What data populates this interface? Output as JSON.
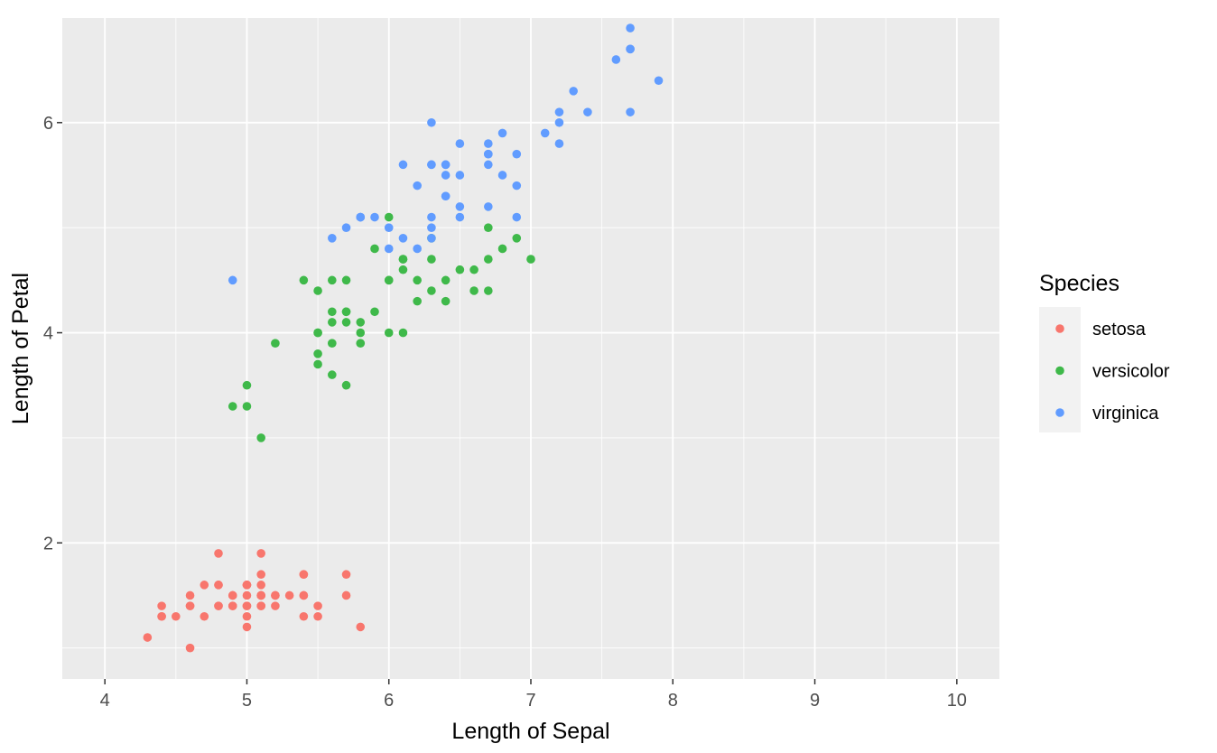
{
  "chart_data": {
    "type": "scatter",
    "title": "",
    "xlabel": "Length of Sepal",
    "ylabel": "Length of Petal",
    "xlim": [
      3.7,
      10.3
    ],
    "ylim": [
      0.705,
      6.995
    ],
    "x_ticks": [
      4,
      5,
      6,
      7,
      8,
      9,
      10
    ],
    "x_tick_labels": [
      "4",
      "5",
      "6",
      "7",
      "8",
      "9",
      "10"
    ],
    "y_ticks": [
      2,
      4,
      6
    ],
    "y_tick_labels": [
      "2",
      "4",
      "6"
    ],
    "grid": true,
    "legend": {
      "title": "Species",
      "position": "right"
    },
    "series": [
      {
        "name": "setosa",
        "color": "#F8766D",
        "points": [
          [
            5.1,
            1.4
          ],
          [
            4.9,
            1.4
          ],
          [
            4.7,
            1.3
          ],
          [
            4.6,
            1.5
          ],
          [
            5.0,
            1.4
          ],
          [
            5.4,
            1.7
          ],
          [
            4.6,
            1.4
          ],
          [
            5.0,
            1.5
          ],
          [
            4.4,
            1.4
          ],
          [
            4.9,
            1.5
          ],
          [
            5.4,
            1.5
          ],
          [
            4.8,
            1.6
          ],
          [
            4.8,
            1.4
          ],
          [
            4.3,
            1.1
          ],
          [
            5.8,
            1.2
          ],
          [
            5.7,
            1.5
          ],
          [
            5.4,
            1.3
          ],
          [
            5.1,
            1.4
          ],
          [
            5.7,
            1.7
          ],
          [
            5.1,
            1.5
          ],
          [
            5.4,
            1.7
          ],
          [
            5.1,
            1.5
          ],
          [
            4.6,
            1.0
          ],
          [
            5.1,
            1.7
          ],
          [
            4.8,
            1.9
          ],
          [
            5.0,
            1.6
          ],
          [
            5.0,
            1.6
          ],
          [
            5.2,
            1.5
          ],
          [
            5.2,
            1.4
          ],
          [
            4.7,
            1.6
          ],
          [
            4.8,
            1.6
          ],
          [
            5.4,
            1.5
          ],
          [
            5.2,
            1.5
          ],
          [
            5.5,
            1.4
          ],
          [
            4.9,
            1.5
          ],
          [
            5.0,
            1.2
          ],
          [
            5.5,
            1.3
          ],
          [
            4.9,
            1.4
          ],
          [
            4.4,
            1.3
          ],
          [
            5.1,
            1.5
          ],
          [
            5.0,
            1.3
          ],
          [
            4.5,
            1.3
          ],
          [
            4.4,
            1.3
          ],
          [
            5.0,
            1.6
          ],
          [
            5.1,
            1.9
          ],
          [
            4.8,
            1.4
          ],
          [
            5.1,
            1.6
          ],
          [
            4.6,
            1.4
          ],
          [
            5.3,
            1.5
          ],
          [
            5.0,
            1.4
          ]
        ]
      },
      {
        "name": "versicolor",
        "color": "#3FB94A",
        "points": [
          [
            7.0,
            4.7
          ],
          [
            6.4,
            4.5
          ],
          [
            6.9,
            4.9
          ],
          [
            5.5,
            4.0
          ],
          [
            6.5,
            4.6
          ],
          [
            5.7,
            4.5
          ],
          [
            6.3,
            4.7
          ],
          [
            4.9,
            3.3
          ],
          [
            6.6,
            4.6
          ],
          [
            5.2,
            3.9
          ],
          [
            5.0,
            3.5
          ],
          [
            5.9,
            4.2
          ],
          [
            6.0,
            4.0
          ],
          [
            6.1,
            4.7
          ],
          [
            5.6,
            3.6
          ],
          [
            6.7,
            4.4
          ],
          [
            5.6,
            4.5
          ],
          [
            5.8,
            4.1
          ],
          [
            6.2,
            4.5
          ],
          [
            5.6,
            3.9
          ],
          [
            5.9,
            4.8
          ],
          [
            6.1,
            4.0
          ],
          [
            6.3,
            4.9
          ],
          [
            6.1,
            4.7
          ],
          [
            6.4,
            4.3
          ],
          [
            6.6,
            4.4
          ],
          [
            6.8,
            4.8
          ],
          [
            6.7,
            5.0
          ],
          [
            6.0,
            4.5
          ],
          [
            5.7,
            3.5
          ],
          [
            5.5,
            3.8
          ],
          [
            5.5,
            3.7
          ],
          [
            5.8,
            3.9
          ],
          [
            6.0,
            5.1
          ],
          [
            5.4,
            4.5
          ],
          [
            6.0,
            4.5
          ],
          [
            6.7,
            4.7
          ],
          [
            6.3,
            4.4
          ],
          [
            5.6,
            4.1
          ],
          [
            5.5,
            4.0
          ],
          [
            5.5,
            4.4
          ],
          [
            6.1,
            4.6
          ],
          [
            5.8,
            4.0
          ],
          [
            5.0,
            3.3
          ],
          [
            5.6,
            4.2
          ],
          [
            5.7,
            4.2
          ],
          [
            5.7,
            4.2
          ],
          [
            6.2,
            4.3
          ],
          [
            5.1,
            3.0
          ],
          [
            5.7,
            4.1
          ]
        ]
      },
      {
        "name": "virginica",
        "color": "#619CFF",
        "points": [
          [
            6.3,
            6.0
          ],
          [
            5.8,
            5.1
          ],
          [
            7.1,
            5.9
          ],
          [
            6.3,
            5.6
          ],
          [
            6.5,
            5.8
          ],
          [
            7.6,
            6.6
          ],
          [
            4.9,
            4.5
          ],
          [
            7.3,
            6.3
          ],
          [
            6.7,
            5.8
          ],
          [
            7.2,
            6.1
          ],
          [
            6.5,
            5.1
          ],
          [
            6.4,
            5.3
          ],
          [
            6.8,
            5.5
          ],
          [
            5.7,
            5.0
          ],
          [
            5.8,
            5.1
          ],
          [
            6.4,
            5.3
          ],
          [
            6.5,
            5.5
          ],
          [
            7.7,
            6.7
          ],
          [
            7.7,
            6.9
          ],
          [
            6.0,
            5.0
          ],
          [
            6.9,
            5.7
          ],
          [
            5.6,
            4.9
          ],
          [
            7.7,
            6.7
          ],
          [
            6.3,
            4.9
          ],
          [
            6.7,
            5.7
          ],
          [
            7.2,
            6.0
          ],
          [
            6.2,
            4.8
          ],
          [
            6.1,
            4.9
          ],
          [
            6.4,
            5.6
          ],
          [
            7.2,
            5.8
          ],
          [
            7.4,
            6.1
          ],
          [
            7.9,
            6.4
          ],
          [
            6.4,
            5.6
          ],
          [
            6.3,
            5.1
          ],
          [
            6.1,
            5.6
          ],
          [
            7.7,
            6.1
          ],
          [
            6.3,
            5.6
          ],
          [
            6.4,
            5.5
          ],
          [
            6.0,
            4.8
          ],
          [
            6.9,
            5.4
          ],
          [
            6.7,
            5.6
          ],
          [
            6.9,
            5.1
          ],
          [
            5.8,
            5.1
          ],
          [
            6.8,
            5.9
          ],
          [
            6.7,
            5.7
          ],
          [
            6.7,
            5.2
          ],
          [
            6.3,
            5.0
          ],
          [
            6.5,
            5.2
          ],
          [
            6.2,
            5.4
          ],
          [
            5.9,
            5.1
          ]
        ]
      }
    ]
  }
}
